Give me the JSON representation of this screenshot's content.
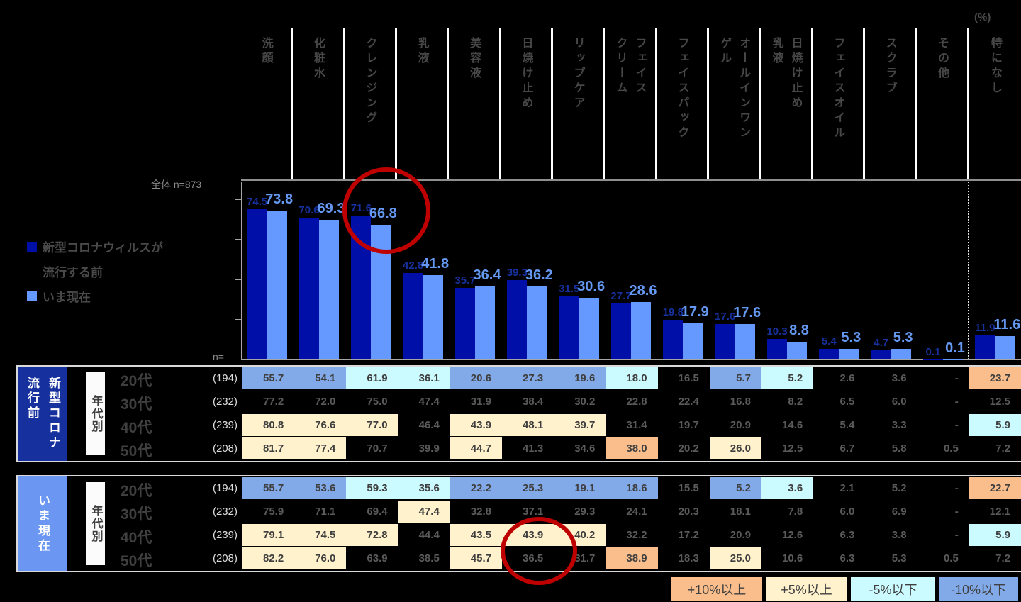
{
  "unit_label": "(%)",
  "overall_label": "全体 n=873",
  "n_axis_label": "n=",
  "chart_legend": {
    "before_line1": "新型コロナウィルスが",
    "before_line2": "流行する前",
    "now_label": "いま現在"
  },
  "colors": {
    "before_bar": "#000FA8",
    "now_bar": "#6699FF",
    "before_value_text": "#16309E",
    "now_value_text": "#6598F2",
    "group_box_before": "#16309E",
    "group_box_now": "#6B97F2",
    "red_circle": "#BE0000"
  },
  "category_headers": [
    "洗顔",
    "化粧水",
    "クレンジング",
    "乳液",
    "美容液",
    "日焼け止め",
    "リップケア",
    "フェイス\nクリーム",
    "フェイスパック",
    "オールインワン\nゲル",
    "日焼け止め\n乳液",
    "フェイスオイル",
    "スクラブ",
    "その他",
    "特になし"
  ],
  "chart_data": {
    "type": "bar",
    "unit": "%",
    "title": "",
    "categories": [
      "洗顔",
      "化粧水",
      "クレンジング",
      "乳液",
      "美容液",
      "日焼け止め",
      "リップケア",
      "フェイスクリーム",
      "フェイスパック",
      "オールインワンゲル",
      "日焼け止め乳液",
      "フェイスオイル",
      "スクラブ",
      "その他",
      "特になし"
    ],
    "series": [
      {
        "name": "新型コロナウィルスが流行する前",
        "values": [
          74.5,
          70.6,
          71.6,
          42.8,
          35.7,
          39.3,
          31.5,
          27.7,
          19.8,
          17.6,
          10.3,
          5.4,
          4.7,
          0.1,
          11.9
        ]
      },
      {
        "name": "いま現在",
        "values": [
          73.8,
          69.3,
          66.8,
          41.8,
          36.4,
          36.2,
          30.6,
          28.6,
          17.9,
          17.6,
          8.8,
          5.3,
          5.3,
          0.1,
          11.6
        ]
      }
    ],
    "ylim": [
      0,
      80
    ],
    "overall_n": 873,
    "legend_position": "left",
    "grid": false
  },
  "highlight_colors": {
    "o": "#F9BE8C",
    "y": "#FFF2CC",
    "c": "#CCFBFF",
    "b": "#82AAE8"
  },
  "tables": [
    {
      "group_label": "新型コロナ\n流行前",
      "group_color": "#16309E",
      "row_header": "年代別",
      "rows": [
        {
          "label": "20代",
          "n": "(194)",
          "values": [
            "55.7",
            "54.1",
            "61.9",
            "36.1",
            "20.6",
            "27.3",
            "19.6",
            "18.0",
            "16.5",
            "5.7",
            "5.2",
            "2.6",
            "3.6",
            "-",
            "23.7"
          ],
          "highlights": [
            "b",
            "b",
            "c",
            "c",
            "b",
            "b",
            "b",
            "c",
            "",
            "b",
            "c",
            "",
            "",
            "",
            "o"
          ]
        },
        {
          "label": "30代",
          "n": "(232)",
          "values": [
            "77.2",
            "72.0",
            "75.0",
            "47.4",
            "31.9",
            "38.4",
            "30.2",
            "22.8",
            "22.4",
            "16.8",
            "8.2",
            "6.5",
            "6.0",
            "-",
            "12.5"
          ],
          "highlights": [
            "",
            "",
            "",
            "",
            "",
            "",
            "",
            "",
            "",
            "",
            "",
            "",
            "",
            "",
            ""
          ]
        },
        {
          "label": "40代",
          "n": "(239)",
          "values": [
            "80.8",
            "76.6",
            "77.0",
            "46.4",
            "43.9",
            "48.1",
            "39.7",
            "31.4",
            "19.7",
            "20.9",
            "14.6",
            "5.4",
            "3.3",
            "-",
            "5.9"
          ],
          "highlights": [
            "y",
            "y",
            "y",
            "",
            "y",
            "y",
            "y",
            "",
            "",
            "",
            "",
            "",
            "",
            "",
            "c"
          ]
        },
        {
          "label": "50代",
          "n": "(208)",
          "values": [
            "81.7",
            "77.4",
            "70.7",
            "39.9",
            "44.7",
            "41.3",
            "34.6",
            "38.0",
            "20.2",
            "26.0",
            "12.5",
            "6.7",
            "5.8",
            "0.5",
            "7.2"
          ],
          "highlights": [
            "y",
            "y",
            "",
            "",
            "y",
            "",
            "",
            "o",
            "",
            "y",
            "",
            "",
            "",
            "",
            ""
          ]
        }
      ]
    },
    {
      "group_label": "いま現在",
      "group_color": "#6B97F2",
      "row_header": "年代別",
      "rows": [
        {
          "label": "20代",
          "n": "(194)",
          "values": [
            "55.7",
            "53.6",
            "59.3",
            "35.6",
            "22.2",
            "25.3",
            "19.1",
            "18.6",
            "15.5",
            "5.2",
            "3.6",
            "2.1",
            "5.2",
            "-",
            "22.7"
          ],
          "highlights": [
            "b",
            "b",
            "c",
            "c",
            "b",
            "b",
            "b",
            "b",
            "",
            "b",
            "c",
            "",
            "",
            "",
            "o"
          ]
        },
        {
          "label": "30代",
          "n": "(232)",
          "values": [
            "75.9",
            "71.1",
            "69.4",
            "47.4",
            "32.8",
            "37.1",
            "29.3",
            "24.1",
            "20.3",
            "18.1",
            "7.8",
            "6.0",
            "6.9",
            "-",
            "12.1"
          ],
          "highlights": [
            "",
            "",
            "",
            "y",
            "",
            "",
            "",
            "",
            "",
            "",
            "",
            "",
            "",
            "",
            ""
          ]
        },
        {
          "label": "40代",
          "n": "(239)",
          "values": [
            "79.1",
            "74.5",
            "72.8",
            "44.4",
            "43.5",
            "43.9",
            "40.2",
            "32.2",
            "17.2",
            "20.9",
            "12.6",
            "6.3",
            "3.8",
            "-",
            "5.9"
          ],
          "highlights": [
            "y",
            "y",
            "y",
            "",
            "y",
            "y",
            "y",
            "",
            "",
            "",
            "",
            "",
            "",
            "",
            "c"
          ]
        },
        {
          "label": "50代",
          "n": "(208)",
          "values": [
            "82.2",
            "76.0",
            "63.9",
            "38.5",
            "45.7",
            "36.5",
            "31.7",
            "38.9",
            "18.3",
            "25.0",
            "10.6",
            "6.3",
            "5.3",
            "0.5",
            "7.2"
          ],
          "highlights": [
            "y",
            "y",
            "",
            "",
            "y",
            "",
            "",
            "o",
            "",
            "y",
            "",
            "",
            "",
            "",
            ""
          ]
        }
      ]
    }
  ],
  "diff_legend": [
    {
      "label": "+10%以上",
      "color": "#F9BE8C"
    },
    {
      "label": "+5%以上",
      "color": "#FFF2CC"
    },
    {
      "label": "-5%以下",
      "color": "#CCFBFF"
    },
    {
      "label": "-10%以下",
      "color": "#82AAE8"
    }
  ]
}
